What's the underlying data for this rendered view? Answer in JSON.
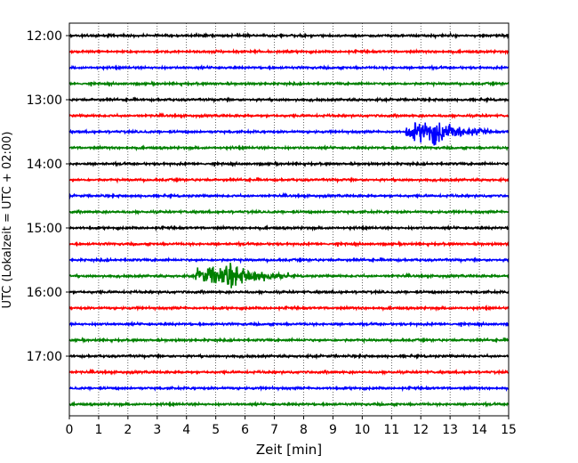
{
  "chart_data": {
    "type": "line",
    "title": "",
    "xlabel": "Zeit  [min]",
    "ylabel": "UTC (Lokalzeit = UTC + 02:00)",
    "xlim": [
      0,
      15
    ],
    "x_ticks": [
      0,
      1,
      2,
      3,
      4,
      5,
      6,
      7,
      8,
      9,
      10,
      11,
      12,
      13,
      14,
      15
    ],
    "y_tick_labels": [
      "12:00",
      "13:00",
      "14:00",
      "15:00",
      "16:00",
      "17:00"
    ],
    "trace_minutes": 15,
    "grid": "vertical dotted",
    "legend": "none",
    "colors": [
      "#000000",
      "#ff0000",
      "#0000ff",
      "#008000"
    ],
    "traces": [
      {
        "start": "12:00",
        "color": "#000000"
      },
      {
        "start": "12:15",
        "color": "#ff0000"
      },
      {
        "start": "12:30",
        "color": "#0000ff"
      },
      {
        "start": "12:45",
        "color": "#008000"
      },
      {
        "start": "13:00",
        "color": "#000000"
      },
      {
        "start": "13:15",
        "color": "#ff0000"
      },
      {
        "start": "13:30",
        "color": "#0000ff"
      },
      {
        "start": "13:45",
        "color": "#008000"
      },
      {
        "start": "14:00",
        "color": "#000000"
      },
      {
        "start": "14:15",
        "color": "#ff0000"
      },
      {
        "start": "14:30",
        "color": "#0000ff"
      },
      {
        "start": "14:45",
        "color": "#008000"
      },
      {
        "start": "15:00",
        "color": "#000000"
      },
      {
        "start": "15:15",
        "color": "#ff0000"
      },
      {
        "start": "15:30",
        "color": "#0000ff"
      },
      {
        "start": "15:45",
        "color": "#008000"
      },
      {
        "start": "16:00",
        "color": "#000000"
      },
      {
        "start": "16:15",
        "color": "#ff0000"
      },
      {
        "start": "16:30",
        "color": "#0000ff"
      },
      {
        "start": "16:45",
        "color": "#008000"
      },
      {
        "start": "17:00",
        "color": "#000000"
      },
      {
        "start": "17:15",
        "color": "#ff0000"
      },
      {
        "start": "17:30",
        "color": "#0000ff"
      },
      {
        "start": "17:45",
        "color": "#008000"
      }
    ],
    "events": [
      {
        "trace_start": "13:30",
        "x_start": 11.5,
        "x_end": 14.3
      },
      {
        "trace_start": "15:45",
        "x_start": 4.3,
        "x_end": 7.5
      }
    ]
  }
}
